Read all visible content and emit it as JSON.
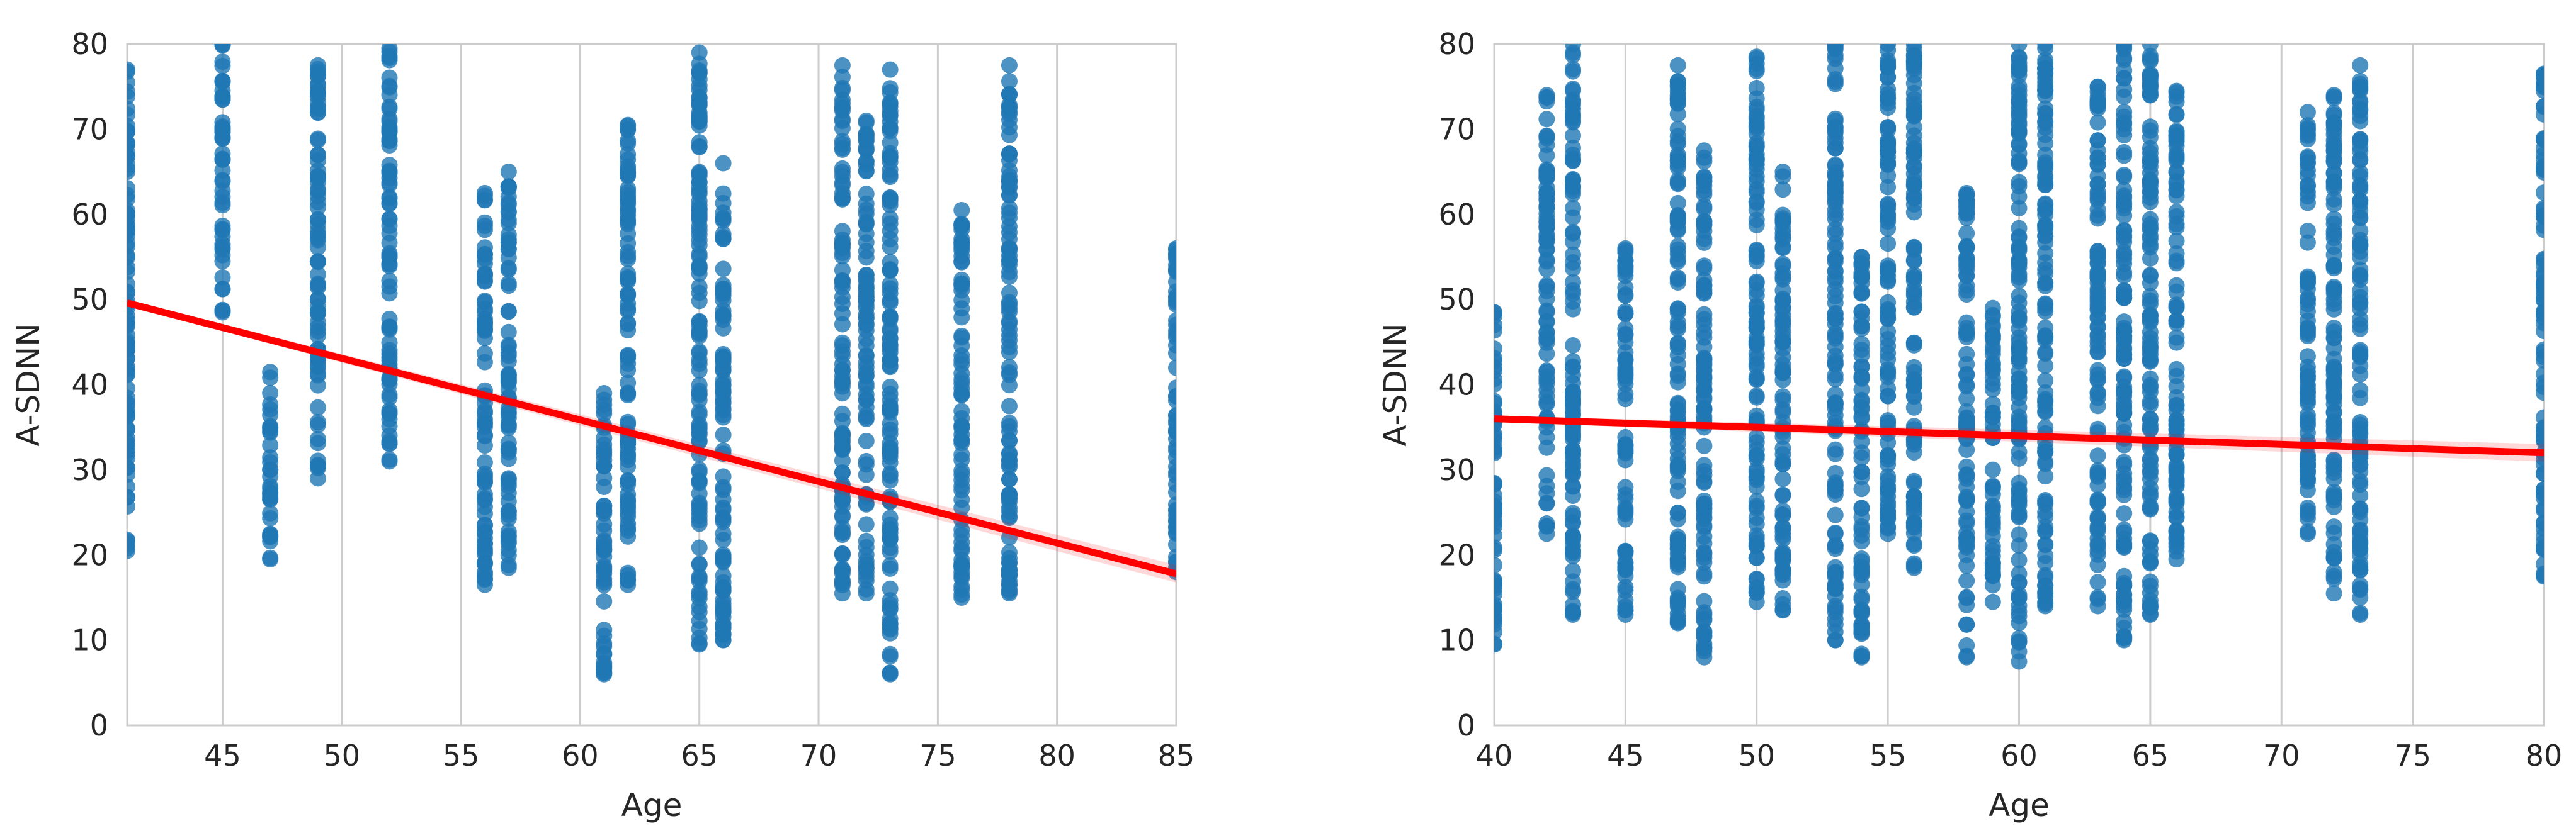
{
  "colors": {
    "points": "#1f77b4",
    "regression_line": "#ff0000",
    "grid": "#cccccc",
    "text": "#262626"
  },
  "chart_data": [
    {
      "type": "scatter",
      "title": "",
      "xlabel": "Age",
      "ylabel": "A-SDNN",
      "xlim": [
        41,
        85
      ],
      "ylim": [
        0,
        80
      ],
      "grid": "vertical",
      "legend": "none",
      "xticks": [
        45,
        50,
        55,
        60,
        65,
        70,
        75,
        80,
        85
      ],
      "yticks": [
        0,
        10,
        20,
        30,
        40,
        50,
        60,
        70,
        80
      ],
      "columns": [
        {
          "age": 41,
          "min": 20.5,
          "max": 77
        },
        {
          "age": 45,
          "min": 48.5,
          "max": 80
        },
        {
          "age": 47,
          "min": 19.5,
          "max": 41.5
        },
        {
          "age": 49,
          "min": 29,
          "max": 77.5
        },
        {
          "age": 52,
          "min": 31,
          "max": 79.5
        },
        {
          "age": 56,
          "min": 16.5,
          "max": 62.5
        },
        {
          "age": 57,
          "min": 18.5,
          "max": 65
        },
        {
          "age": 61,
          "min": 6,
          "max": 39
        },
        {
          "age": 62,
          "min": 16.5,
          "max": 70.5
        },
        {
          "age": 65,
          "min": 9.5,
          "max": 79
        },
        {
          "age": 66,
          "min": 10,
          "max": 66
        },
        {
          "age": 71,
          "min": 15.5,
          "max": 77.5
        },
        {
          "age": 72,
          "min": 15.5,
          "max": 71
        },
        {
          "age": 73,
          "min": 6,
          "max": 77
        },
        {
          "age": 76,
          "min": 15,
          "max": 60.5
        },
        {
          "age": 78,
          "min": 15.5,
          "max": 77.5
        },
        {
          "age": 85,
          "min": 18,
          "max": 56
        }
      ],
      "regression": {
        "x": [
          41,
          85
        ],
        "y": [
          49.6,
          17.8
        ]
      }
    },
    {
      "type": "scatter",
      "title": "",
      "xlabel": "Age",
      "ylabel": "A-SDNN",
      "xlim": [
        40,
        80
      ],
      "ylim": [
        0,
        80
      ],
      "grid": "vertical",
      "legend": "none",
      "xticks": [
        40,
        45,
        50,
        55,
        60,
        65,
        70,
        75,
        80
      ],
      "yticks": [
        0,
        10,
        20,
        30,
        40,
        50,
        60,
        70,
        80
      ],
      "columns": [
        {
          "age": 40,
          "min": 9.5,
          "max": 48.5
        },
        {
          "age": 42,
          "min": 22.5,
          "max": 74
        },
        {
          "age": 43,
          "min": 13,
          "max": 80
        },
        {
          "age": 45,
          "min": 13,
          "max": 56
        },
        {
          "age": 47,
          "min": 12,
          "max": 77.5
        },
        {
          "age": 48,
          "min": 8,
          "max": 67.5
        },
        {
          "age": 50,
          "min": 14.5,
          "max": 78.5
        },
        {
          "age": 51,
          "min": 13.5,
          "max": 65
        },
        {
          "age": 53,
          "min": 10,
          "max": 80
        },
        {
          "age": 54,
          "min": 8,
          "max": 55
        },
        {
          "age": 55,
          "min": 22.5,
          "max": 80
        },
        {
          "age": 56,
          "min": 18.5,
          "max": 80
        },
        {
          "age": 58,
          "min": 8,
          "max": 62.5
        },
        {
          "age": 59,
          "min": 14.5,
          "max": 49
        },
        {
          "age": 60,
          "min": 7.5,
          "max": 80
        },
        {
          "age": 61,
          "min": 14,
          "max": 80
        },
        {
          "age": 63,
          "min": 14,
          "max": 75
        },
        {
          "age": 64,
          "min": 10,
          "max": 80
        },
        {
          "age": 65,
          "min": 13,
          "max": 80
        },
        {
          "age": 66,
          "min": 19.5,
          "max": 74.5
        },
        {
          "age": 71,
          "min": 22.5,
          "max": 72
        },
        {
          "age": 72,
          "min": 15.5,
          "max": 74
        },
        {
          "age": 73,
          "min": 13,
          "max": 77.5
        },
        {
          "age": 80,
          "min": 17.5,
          "max": 76.5
        }
      ],
      "regression": {
        "x": [
          40,
          80
        ],
        "y": [
          36,
          32
        ]
      }
    }
  ]
}
